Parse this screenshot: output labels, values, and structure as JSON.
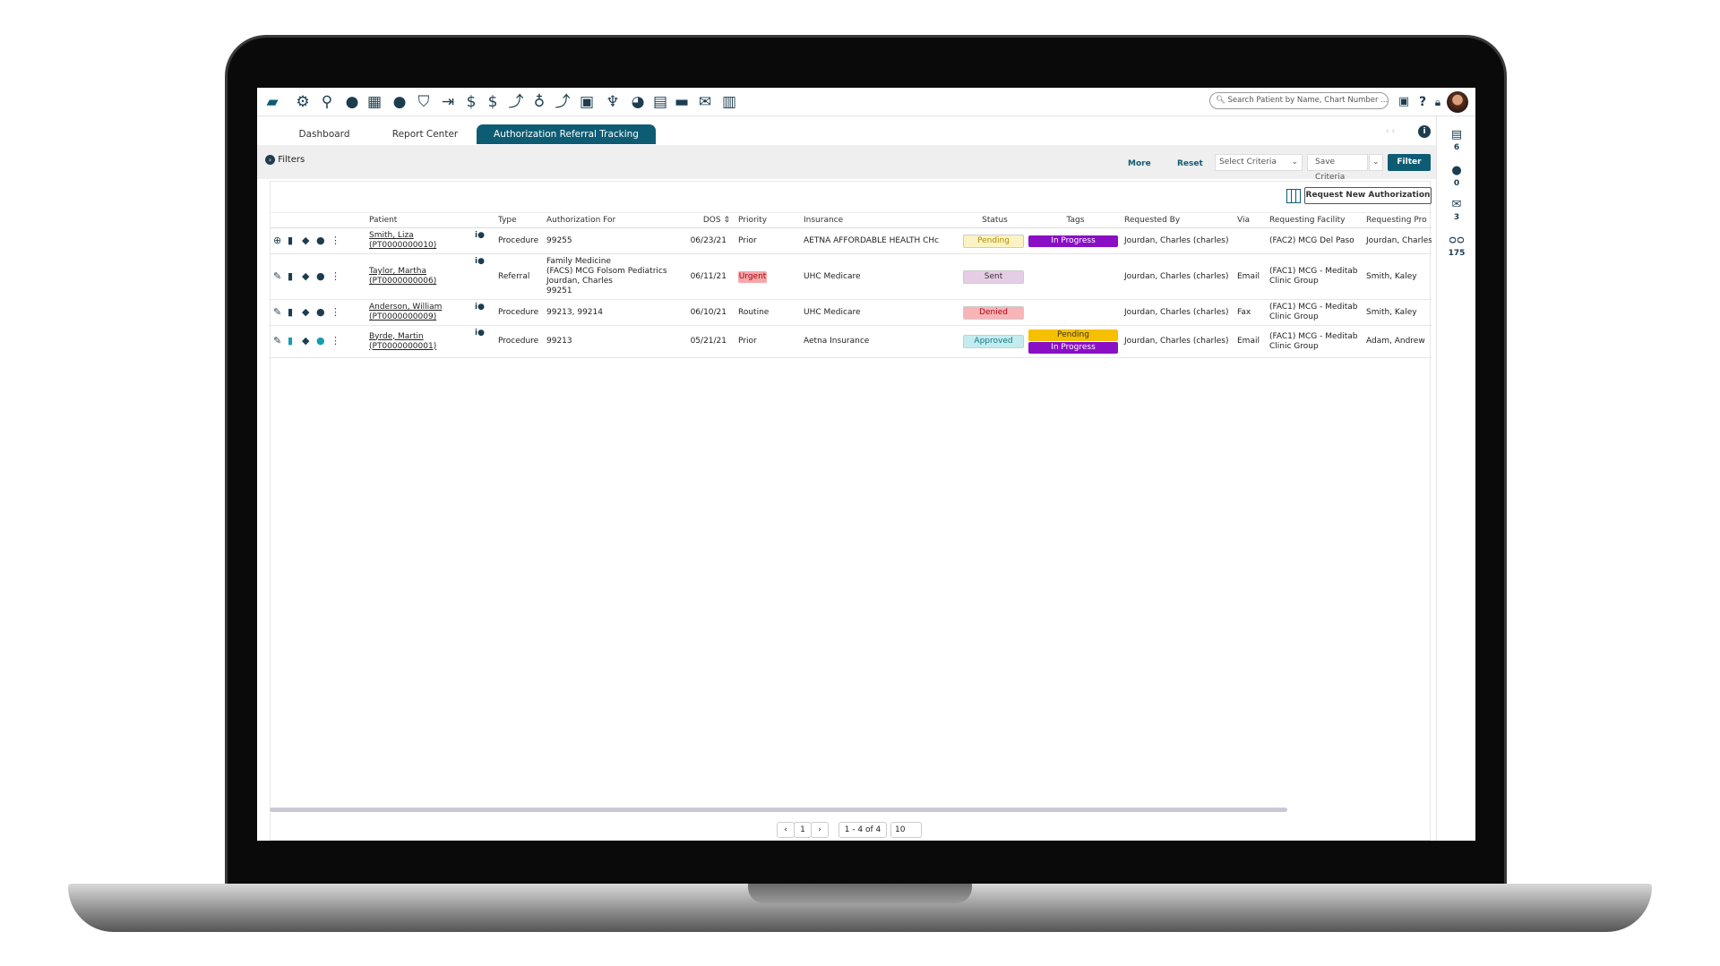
{
  "toolbar": {
    "icons": [
      "chat-logo-icon",
      "gear-icon",
      "search-icon",
      "user-icon",
      "calendar-icon",
      "user-shield-icon",
      "shield-check-icon",
      "sign-in-icon",
      "dollar-icon",
      "dollar-transfer-icon",
      "hand-dollar-icon",
      "money-bag-icon",
      "hand-coins-icon",
      "safe-dollar-icon",
      "hands-dollar-icon",
      "pie-chart-icon",
      "receipt-icon",
      "book-icon",
      "envelope-icon",
      "bar-chart-icon"
    ],
    "search_placeholder": "Search Patient by Name, Chart Number ..."
  },
  "tabs": [
    {
      "label": "Dashboard"
    },
    {
      "label": "Report Center"
    },
    {
      "label": "Authorization Referral Tracking",
      "active": true
    }
  ],
  "filters": {
    "label": "Filters",
    "more": "More",
    "reset": "Reset",
    "select_criteria": "Select Criteria",
    "save_criteria": "Save Criteria",
    "filter": "Filter"
  },
  "right_sidebar": [
    {
      "icon": "clipboard-icon",
      "count": "6"
    },
    {
      "icon": "comment-icon",
      "count": "0"
    },
    {
      "icon": "envelope-icon",
      "count": "3"
    },
    {
      "icon": "voicemail-icon",
      "count": "175"
    }
  ],
  "request_button": "Request New Authorization",
  "columns": [
    "Patient",
    "Type",
    "Authorization For",
    "DOS",
    "Priority",
    "Insurance",
    "Status",
    "Tags",
    "Requested By",
    "Via",
    "Requesting Facility",
    "Requesting Pro"
  ],
  "rows": [
    {
      "patient": "Smith, Liza",
      "chart": "(PT0000000010)",
      "type": "Procedure",
      "auth": [
        "99255"
      ],
      "dos": "06/23/21",
      "priority": "Prior",
      "insurance": "AETNA AFFORDABLE HEALTH CHc",
      "status": "Pending",
      "tags": [
        "In Progress"
      ],
      "requested_by": "Jourdan, Charles (charles)",
      "via": "",
      "facility": [
        "(FAC2) MCG Del Paso"
      ],
      "provider": "Jourdan, Charles"
    },
    {
      "patient": "Taylor, Martha",
      "chart": "(PT0000000006)",
      "type": "Referral",
      "auth": [
        "Family Medicine",
        "(FACS) MCG Folsom Pediatrics",
        "Jourdan, Charles",
        "99251"
      ],
      "dos": "06/11/21",
      "priority": "Urgent",
      "insurance": "UHC Medicare",
      "status": "Sent",
      "tags": [],
      "requested_by": "Jourdan, Charles (charles)",
      "via": "Email",
      "facility": [
        "(FAC1) MCG - Meditab",
        "Clinic Group"
      ],
      "provider": "Smith, Kaley"
    },
    {
      "patient": "Anderson, William",
      "chart": "(PT0000000009)",
      "type": "Procedure",
      "auth": [
        "99213, 99214"
      ],
      "dos": "06/10/21",
      "priority": "Routine",
      "insurance": "UHC Medicare",
      "status": "Denied",
      "tags": [],
      "requested_by": "Jourdan, Charles (charles)",
      "via": "Fax",
      "facility": [
        "(FAC1) MCG - Meditab",
        "Clinic Group"
      ],
      "provider": "Smith, Kaley"
    },
    {
      "patient": "Byrde, Martin",
      "chart": "(PT0000000001)",
      "type": "Procedure",
      "auth": [
        "99213"
      ],
      "dos": "05/21/21",
      "priority": "Prior",
      "insurance": "Aetna Insurance",
      "status": "Approved",
      "tags": [
        "Pending",
        "In Progress"
      ],
      "requested_by": "Jourdan, Charles (charles)",
      "via": "Email",
      "facility": [
        "(FAC1) MCG - Meditab",
        "Clinic Group"
      ],
      "provider": "Adam, Andrew"
    }
  ],
  "pagination": {
    "page": "1",
    "range": "1 - 4 of 4",
    "page_size": "10"
  },
  "colors": {
    "brand": "#0e5c74",
    "pending": "#fbf3c4",
    "sent": "#e6cde6",
    "denied": "#f7b5b8",
    "approved": "#c4ecef",
    "tag_in_progress": "#8a0fc4",
    "tag_pending": "#f6c000",
    "urgent": "#f4a8aa"
  }
}
